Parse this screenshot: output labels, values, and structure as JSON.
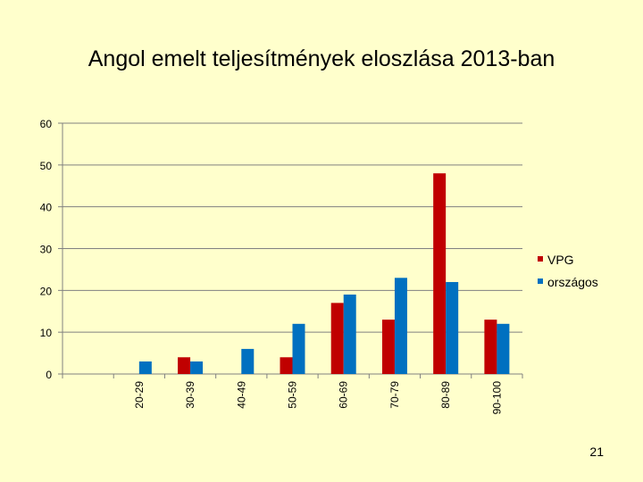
{
  "slide": {
    "title": "Angol emelt teljesítmények eloszlása 2013-ban",
    "page_number": "21"
  },
  "chart_data": {
    "type": "bar",
    "title": "Angol emelt teljesítmények eloszlása 2013-ban",
    "xlabel": "",
    "ylabel": "",
    "categories": [
      "",
      "20-29",
      "30-39",
      "40-49",
      "50-59",
      "60-69",
      "70-79",
      "80-89",
      "90-100"
    ],
    "series": [
      {
        "name": "VPG",
        "color": "#c00000",
        "values": [
          0,
          0,
          4,
          0,
          4,
          17,
          13,
          48,
          13
        ]
      },
      {
        "name": "országos",
        "color": "#0070c0",
        "values": [
          0,
          3,
          3,
          6,
          12,
          19,
          23,
          22,
          12
        ]
      }
    ],
    "ylim": [
      0,
      60
    ],
    "yticks": [
      0,
      10,
      20,
      30,
      40,
      50,
      60
    ],
    "grid": true,
    "legend": "right"
  }
}
